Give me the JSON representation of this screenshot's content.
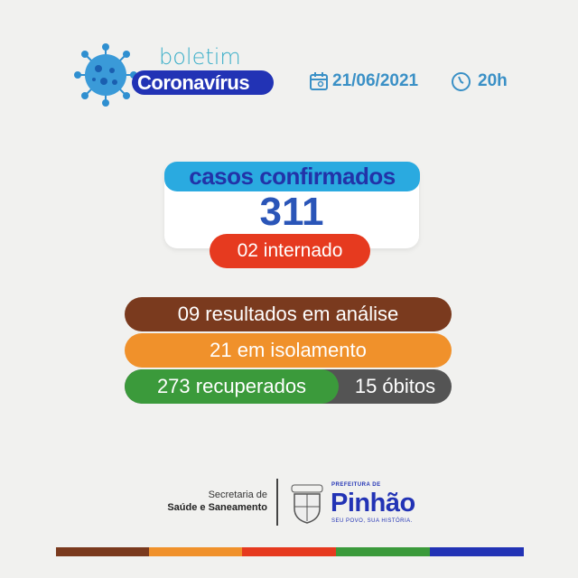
{
  "header": {
    "boletim": "boletim",
    "title": "Coronavírus",
    "date": "21/06/2021",
    "time": "20h",
    "icons": [
      "virus-icon",
      "calendar-icon",
      "clock-icon"
    ]
  },
  "cases": {
    "label": "casos confirmados",
    "total": "311",
    "hospitalized": "02 internado"
  },
  "stats": {
    "analysis": "09 resultados em análise",
    "isolation": "21 em isolamento",
    "recovered": "273 recuperados",
    "deaths": "15 óbitos"
  },
  "footer": {
    "secretaria_line1": "Secretaria de",
    "secretaria_line2": "Saúde e Saneamento",
    "prefeitura": "PREFEITURA DE",
    "city": "Pinhão",
    "slogan": "SEU POVO, SUA HISTÓRIA.",
    "crest_text": "PINHÃO"
  },
  "colors": {
    "brown": "#7a3a1e",
    "orange": "#f0912b",
    "red": "#e63a1f",
    "green": "#3b9a3b",
    "blue": "#2233b5",
    "cyan": "#2aaae0",
    "gray": "#545454"
  }
}
